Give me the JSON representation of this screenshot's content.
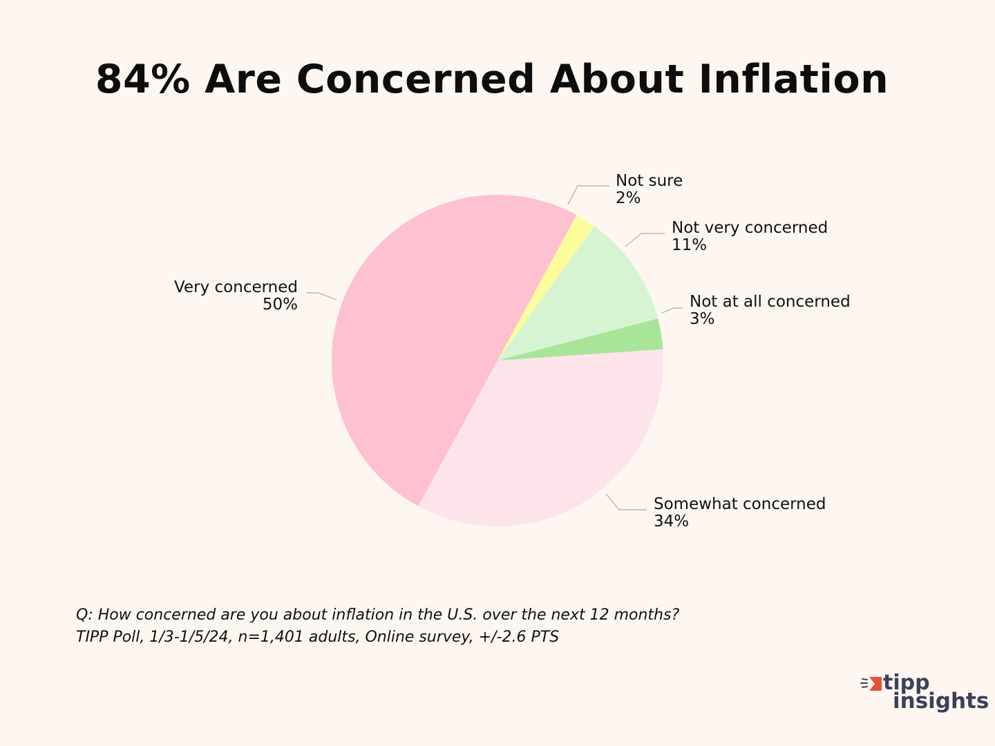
{
  "chart_data": {
    "type": "pie",
    "title": "84% Are Concerned About Inflation",
    "categories": [
      "Very concerned",
      "Not sure",
      "Not very concerned",
      "Not at all concerned",
      "Somewhat concerned"
    ],
    "values": [
      50,
      2,
      11,
      3,
      34
    ],
    "value_labels": [
      "50%",
      "2%",
      "11%",
      "3%",
      "34%"
    ],
    "colors": [
      "#fec1d0",
      "#fcfc9d",
      "#d7f4d2",
      "#a8e598",
      "#fde4ea"
    ],
    "start_angle_deg": 208.5,
    "legend": "none (labels beside slices)"
  },
  "footnotes": {
    "question": "Q:  How concerned are you about inflation in the U.S. over the next 12 months?",
    "source": "TIPP Poll, 1/3-1/5/24, n=1,401 adults, Online survey, +/-2.6 PTS"
  },
  "logo": {
    "line1": "tipp",
    "line2": "insights",
    "mark_color": "#e8503a",
    "text_color": "#3d3f5a"
  }
}
